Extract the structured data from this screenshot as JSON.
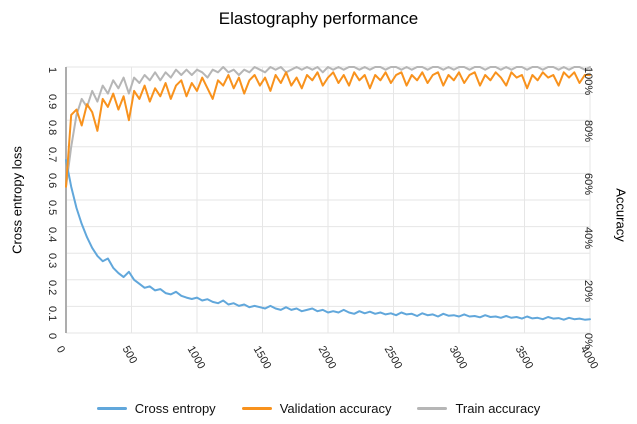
{
  "title": "Elastography performance",
  "colors": {
    "blue": "#61a7db",
    "orange": "#f8921d",
    "gray": "#b6b6b6",
    "grid": "#e6e6e6",
    "axis_line": "#adadad",
    "text": "#000000",
    "tick_text": "#222222"
  },
  "axes": {
    "x": {
      "tick_labels": [
        "0",
        "500",
        "1000",
        "1500",
        "2000",
        "2500",
        "3000",
        "3500",
        "4000"
      ],
      "tick_values": [
        0,
        500,
        1000,
        1500,
        2000,
        2500,
        3000,
        3500,
        4000
      ],
      "range": [
        0,
        4000
      ]
    },
    "y_left": {
      "title": "Cross entropy loss",
      "tick_labels": [
        "1",
        "0.9",
        "0.8",
        "0.7",
        "0.6",
        "0.5",
        "0.4",
        "0.3",
        "0.2",
        "0.1",
        "0"
      ],
      "tick_values": [
        1,
        0.9,
        0.8,
        0.7,
        0.6,
        0.5,
        0.4,
        0.3,
        0.2,
        0.1,
        0
      ],
      "range": [
        0,
        1
      ]
    },
    "y_right": {
      "title": "Accuracy",
      "tick_labels": [
        "100%",
        "80%",
        "60%",
        "40%",
        "20%",
        "0%"
      ],
      "tick_values": [
        100,
        80,
        60,
        40,
        20,
        0
      ],
      "range_pct": [
        0,
        100
      ]
    }
  },
  "legend": [
    {
      "label": "Cross entropy",
      "color": "#61a7db"
    },
    {
      "label": "Validation accuracy",
      "color": "#f8921d"
    },
    {
      "label": "Train accuracy",
      "color": "#b6b6b6"
    }
  ],
  "chart_data": {
    "type": "line",
    "title": "Elastography performance",
    "xlabel": "",
    "ylabel_left": "Cross entropy loss",
    "ylabel_right": "Accuracy",
    "x_range": [
      0,
      4000
    ],
    "y_left_range": [
      0,
      1
    ],
    "y_right_range_pct": [
      0,
      100
    ],
    "grid": true,
    "legend_position": "bottom",
    "x": [
      0,
      40,
      80,
      120,
      160,
      200,
      240,
      280,
      320,
      360,
      400,
      440,
      480,
      520,
      560,
      600,
      640,
      680,
      720,
      760,
      800,
      840,
      880,
      920,
      960,
      1000,
      1040,
      1080,
      1120,
      1160,
      1200,
      1240,
      1280,
      1320,
      1360,
      1400,
      1440,
      1480,
      1520,
      1560,
      1600,
      1640,
      1680,
      1720,
      1760,
      1800,
      1840,
      1880,
      1920,
      1960,
      2000,
      2040,
      2080,
      2120,
      2160,
      2200,
      2240,
      2280,
      2320,
      2360,
      2400,
      2440,
      2480,
      2520,
      2560,
      2600,
      2640,
      2680,
      2720,
      2760,
      2800,
      2840,
      2880,
      2920,
      2960,
      3000,
      3040,
      3080,
      3120,
      3160,
      3200,
      3240,
      3280,
      3320,
      3360,
      3400,
      3440,
      3480,
      3520,
      3560,
      3600,
      3640,
      3680,
      3720,
      3760,
      3800,
      3840,
      3880,
      3920,
      3960,
      4000
    ],
    "series": [
      {
        "name": "Cross entropy",
        "axis": "left",
        "color": "#61a7db",
        "values": [
          0.65,
          0.55,
          0.47,
          0.41,
          0.36,
          0.32,
          0.29,
          0.27,
          0.28,
          0.245,
          0.225,
          0.21,
          0.23,
          0.2,
          0.185,
          0.17,
          0.175,
          0.16,
          0.165,
          0.15,
          0.145,
          0.155,
          0.14,
          0.133,
          0.128,
          0.133,
          0.122,
          0.127,
          0.117,
          0.112,
          0.122,
          0.107,
          0.112,
          0.102,
          0.107,
          0.097,
          0.102,
          0.097,
          0.092,
          0.102,
          0.092,
          0.087,
          0.097,
          0.087,
          0.092,
          0.082,
          0.087,
          0.092,
          0.082,
          0.087,
          0.077,
          0.082,
          0.077,
          0.087,
          0.077,
          0.072,
          0.082,
          0.074,
          0.08,
          0.072,
          0.077,
          0.07,
          0.074,
          0.067,
          0.077,
          0.07,
          0.072,
          0.064,
          0.074,
          0.067,
          0.07,
          0.062,
          0.072,
          0.065,
          0.067,
          0.062,
          0.07,
          0.062,
          0.064,
          0.059,
          0.067,
          0.06,
          0.062,
          0.057,
          0.064,
          0.057,
          0.06,
          0.054,
          0.062,
          0.055,
          0.057,
          0.052,
          0.06,
          0.054,
          0.056,
          0.05,
          0.057,
          0.052,
          0.054,
          0.05,
          0.052
        ]
      },
      {
        "name": "Validation accuracy",
        "axis": "right",
        "color": "#f8921d",
        "values": [
          55,
          82,
          84,
          78,
          86,
          83,
          76,
          88,
          85,
          90,
          84,
          89,
          80,
          91,
          88,
          93,
          87,
          92,
          89,
          94,
          88,
          93,
          95,
          89,
          94,
          91,
          96,
          92,
          88,
          95,
          93,
          97,
          92,
          96,
          90,
          95,
          97,
          93,
          96,
          91,
          97,
          94,
          98,
          93,
          96,
          92,
          97,
          95,
          98,
          93,
          96,
          98,
          94,
          97,
          93,
          98,
          95,
          97,
          92,
          97,
          95,
          98,
          94,
          97,
          98,
          93,
          97,
          95,
          98,
          94,
          97,
          98,
          93,
          97,
          95,
          98,
          94,
          97,
          98,
          93,
          97,
          95,
          98,
          96,
          93,
          98,
          96,
          97,
          92,
          97,
          95,
          98,
          96,
          97,
          93,
          98,
          96,
          98,
          94,
          97,
          97
        ]
      },
      {
        "name": "Train accuracy",
        "axis": "right",
        "color": "#b6b6b6",
        "values": [
          55,
          70,
          82,
          88,
          85,
          91,
          87,
          93,
          90,
          95,
          92,
          96,
          90,
          96,
          94,
          97,
          95,
          98,
          95,
          98,
          96,
          99,
          97,
          99,
          97,
          99,
          98,
          96,
          99,
          98,
          100,
          98,
          99,
          97,
          99,
          98,
          100,
          99,
          98,
          100,
          99,
          100,
          98,
          99,
          100,
          99,
          100,
          99,
          100,
          98,
          100,
          99,
          100,
          99,
          100,
          100,
          99,
          100,
          99,
          100,
          100,
          99,
          100,
          100,
          99,
          100,
          99,
          100,
          100,
          99,
          100,
          100,
          99,
          100,
          99,
          100,
          100,
          99,
          100,
          100,
          99,
          100,
          100,
          99,
          100,
          99,
          100,
          100,
          99,
          100,
          100,
          99,
          100,
          100,
          99,
          100,
          99,
          100,
          100,
          99,
          100
        ]
      }
    ]
  }
}
